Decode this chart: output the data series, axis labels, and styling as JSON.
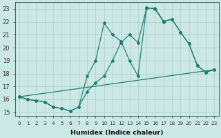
{
  "xlabel": "Humidex (Indice chaleur)",
  "bg_color": "#cce8e4",
  "grid_color": "#aacccc",
  "line_color": "#1a7a6e",
  "xlim": [
    -0.5,
    23.5
  ],
  "ylim": [
    14.7,
    23.5
  ],
  "xticks": [
    0,
    1,
    2,
    3,
    4,
    5,
    6,
    7,
    8,
    9,
    10,
    11,
    12,
    13,
    14,
    15,
    16,
    17,
    18,
    19,
    20,
    21,
    22,
    23
  ],
  "yticks": [
    15,
    16,
    17,
    18,
    19,
    20,
    21,
    22,
    23
  ],
  "line1_x": [
    0,
    1,
    2,
    3,
    4,
    5,
    6,
    7,
    8,
    9,
    10,
    11,
    12,
    13,
    14,
    15,
    16,
    17,
    18,
    19,
    20,
    21,
    22,
    23
  ],
  "line1_y": [
    16.2,
    16.0,
    15.9,
    15.8,
    15.4,
    15.3,
    15.1,
    15.4,
    16.6,
    17.3,
    17.8,
    19.0,
    20.4,
    21.0,
    20.4,
    23.05,
    23.05,
    22.05,
    22.2,
    21.2,
    20.3,
    18.6,
    18.1,
    18.3
  ],
  "line2_x": [
    0,
    23
  ],
  "line2_y": [
    16.2,
    18.3
  ],
  "line3_x": [
    0,
    1,
    2,
    3,
    4,
    5,
    6,
    7,
    8,
    9,
    10,
    11,
    12,
    13,
    14,
    15,
    16,
    17,
    18,
    19,
    20,
    21,
    22,
    23
  ],
  "line3_y": [
    16.2,
    16.0,
    15.9,
    15.8,
    15.4,
    15.3,
    15.1,
    15.4,
    17.8,
    19.0,
    21.9,
    21.0,
    20.5,
    19.0,
    17.8,
    23.1,
    23.0,
    22.0,
    22.2,
    21.2,
    20.3,
    18.6,
    18.1,
    18.3
  ]
}
